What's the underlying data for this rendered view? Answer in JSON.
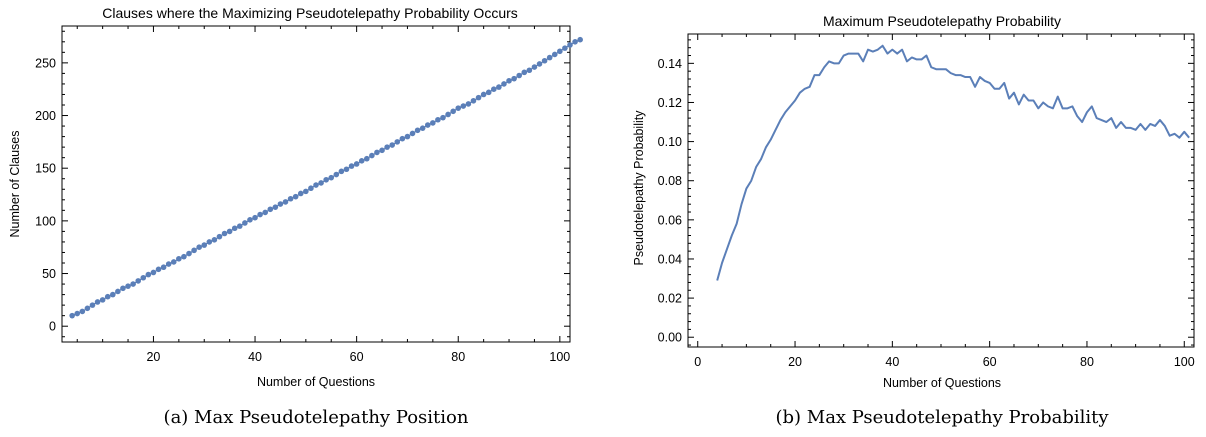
{
  "chart_data": [
    {
      "type": "scatter",
      "title": "Clauses where the Maximizing Pseudotelepathy Probability Occurs",
      "xlabel": "Number of Questions",
      "ylabel": "Number of Clauses",
      "xlim": [
        2,
        102
      ],
      "ylim": [
        -15,
        285
      ],
      "xticks": [
        20,
        40,
        60,
        80,
        100
      ],
      "yticks": [
        0,
        50,
        100,
        150,
        200,
        250
      ],
      "grid": false,
      "color": "#5b7fb8",
      "x_start": 4,
      "x_step": 1,
      "values": [
        10,
        12,
        14,
        17,
        20,
        23,
        25,
        28,
        30,
        33,
        36,
        38,
        40,
        43,
        46,
        49,
        51,
        54,
        56,
        59,
        61,
        64,
        66,
        69,
        72,
        75,
        77,
        80,
        82,
        85,
        88,
        90,
        93,
        95,
        98,
        101,
        103,
        106,
        108,
        111,
        113,
        116,
        118,
        121,
        123,
        126,
        128,
        131,
        134,
        136,
        139,
        141,
        144,
        147,
        149,
        152,
        154,
        157,
        159,
        162,
        165,
        167,
        170,
        172,
        175,
        178,
        180,
        183,
        186,
        188,
        191,
        193,
        196,
        198,
        201,
        204,
        207,
        209,
        211,
        214,
        217,
        220,
        222,
        225,
        227,
        230,
        233,
        235,
        238,
        241,
        243,
        246,
        249,
        252,
        255,
        258,
        261,
        264,
        267,
        270,
        272
      ]
    },
    {
      "type": "line",
      "title": "Maximum Pseudotelepathy Probability",
      "xlabel": "Number of Questions",
      "ylabel": "Pseudotelepathy Probability",
      "xlim": [
        -2,
        102
      ],
      "ylim": [
        -0.005,
        0.155
      ],
      "xticks": [
        0,
        20,
        40,
        60,
        80,
        100
      ],
      "yticks": [
        0.0,
        0.02,
        0.04,
        0.06,
        0.08,
        0.1,
        0.12,
        0.14
      ],
      "ytick_labels": [
        "0.00",
        "0.02",
        "0.04",
        "0.06",
        "0.08",
        "0.10",
        "0.12",
        "0.14"
      ],
      "grid": false,
      "color": "#5b7fb8",
      "x_start": 4,
      "x_step": 1,
      "values": [
        0.029,
        0.038,
        0.045,
        0.052,
        0.058,
        0.068,
        0.076,
        0.08,
        0.087,
        0.091,
        0.097,
        0.101,
        0.106,
        0.111,
        0.115,
        0.118,
        0.121,
        0.125,
        0.127,
        0.128,
        0.134,
        0.134,
        0.138,
        0.141,
        0.14,
        0.14,
        0.144,
        0.145,
        0.145,
        0.145,
        0.141,
        0.147,
        0.146,
        0.147,
        0.149,
        0.145,
        0.147,
        0.145,
        0.147,
        0.141,
        0.143,
        0.142,
        0.142,
        0.144,
        0.138,
        0.137,
        0.137,
        0.137,
        0.135,
        0.134,
        0.134,
        0.133,
        0.133,
        0.128,
        0.133,
        0.131,
        0.13,
        0.127,
        0.127,
        0.13,
        0.122,
        0.125,
        0.119,
        0.124,
        0.121,
        0.121,
        0.117,
        0.12,
        0.118,
        0.117,
        0.123,
        0.117,
        0.117,
        0.118,
        0.113,
        0.11,
        0.115,
        0.118,
        0.112,
        0.111,
        0.11,
        0.112,
        0.107,
        0.11,
        0.107,
        0.107,
        0.106,
        0.109,
        0.106,
        0.109,
        0.108,
        0.111,
        0.108,
        0.103,
        0.104,
        0.102,
        0.105,
        0.102
      ]
    }
  ],
  "captions": [
    "(a) Max Pseudotelepathy Position",
    "(b) Max Pseudotelepathy Probability"
  ]
}
